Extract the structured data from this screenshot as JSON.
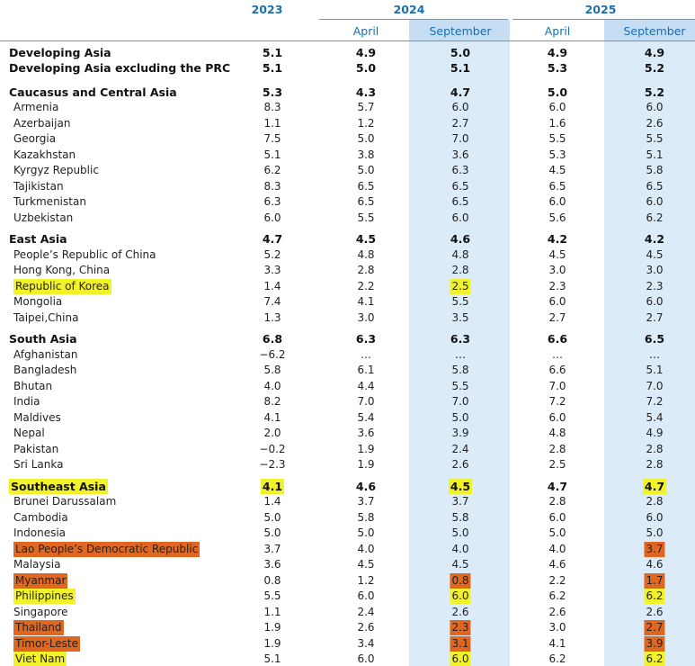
{
  "header": {
    "years": [
      "2023",
      "2024",
      "2025"
    ],
    "months": [
      "April",
      "September",
      "April",
      "September"
    ]
  },
  "table": {
    "groups": [
      {
        "rows": [
          {
            "bold": true,
            "cells": [
              "Developing Asia",
              "5.1",
              "4.9",
              "5.0",
              "4.9",
              "4.9"
            ]
          },
          {
            "bold": true,
            "cells": [
              "Developing Asia excluding the PRC",
              "5.1",
              "5.0",
              "5.1",
              "5.3",
              "5.2"
            ]
          }
        ]
      },
      {
        "rows": [
          {
            "bold": true,
            "cells": [
              "Caucasus and Central Asia",
              "5.3",
              "4.3",
              "4.7",
              "5.0",
              "5.2"
            ]
          },
          {
            "cells": [
              "Armenia",
              "8.3",
              "5.7",
              "6.0",
              "6.0",
              "6.0"
            ]
          },
          {
            "cells": [
              "Azerbaijan",
              "1.1",
              "1.2",
              "2.7",
              "1.6",
              "2.6"
            ]
          },
          {
            "cells": [
              "Georgia",
              "7.5",
              "5.0",
              "7.0",
              "5.5",
              "5.5"
            ]
          },
          {
            "cells": [
              "Kazakhstan",
              "5.1",
              "3.8",
              "3.6",
              "5.3",
              "5.1"
            ]
          },
          {
            "cells": [
              "Kyrgyz Republic",
              "6.2",
              "5.0",
              "6.3",
              "4.5",
              "5.8"
            ]
          },
          {
            "cells": [
              "Tajikistan",
              "8.3",
              "6.5",
              "6.5",
              "6.5",
              "6.5"
            ]
          },
          {
            "cells": [
              "Turkmenistan",
              "6.3",
              "6.5",
              "6.5",
              "6.0",
              "6.0"
            ]
          },
          {
            "cells": [
              "Uzbekistan",
              "6.0",
              "5.5",
              "6.0",
              "5.6",
              "6.2"
            ]
          }
        ]
      },
      {
        "rows": [
          {
            "bold": true,
            "cells": [
              "East Asia",
              "4.7",
              "4.5",
              "4.6",
              "4.2",
              "4.2"
            ]
          },
          {
            "cells": [
              "People’s Republic of China",
              "5.2",
              "4.8",
              "4.8",
              "4.5",
              "4.5"
            ]
          },
          {
            "cells": [
              "Hong Kong, China",
              "3.3",
              "2.8",
              "2.8",
              "3.0",
              "3.0"
            ]
          },
          {
            "yellow": [
              0,
              3
            ],
            "cells": [
              "Republic of Korea",
              "1.4",
              "2.2",
              "2.5",
              "2.3",
              "2.3"
            ]
          },
          {
            "cells": [
              "Mongolia",
              "7.4",
              "4.1",
              "5.5",
              "6.0",
              "6.0"
            ]
          },
          {
            "cells": [
              "Taipei,China",
              "1.3",
              "3.0",
              "3.5",
              "2.7",
              "2.7"
            ]
          }
        ]
      },
      {
        "rows": [
          {
            "bold": true,
            "cells": [
              "South Asia",
              "6.8",
              "6.3",
              "6.3",
              "6.6",
              "6.5"
            ]
          },
          {
            "cells": [
              "Afghanistan",
              "−6.2",
              "…",
              "…",
              "…",
              "…"
            ]
          },
          {
            "cells": [
              "Bangladesh",
              "5.8",
              "6.1",
              "5.8",
              "6.6",
              "5.1"
            ]
          },
          {
            "cells": [
              "Bhutan",
              "4.0",
              "4.4",
              "5.5",
              "7.0",
              "7.0"
            ]
          },
          {
            "cells": [
              "India",
              "8.2",
              "7.0",
              "7.0",
              "7.2",
              "7.2"
            ]
          },
          {
            "cells": [
              "Maldives",
              "4.1",
              "5.4",
              "5.0",
              "6.0",
              "5.4"
            ]
          },
          {
            "cells": [
              "Nepal",
              "2.0",
              "3.6",
              "3.9",
              "4.8",
              "4.9"
            ]
          },
          {
            "cells": [
              "Pakistan",
              "−0.2",
              "1.9",
              "2.4",
              "2.8",
              "2.8"
            ]
          },
          {
            "cells": [
              "Sri Lanka",
              "−2.3",
              "1.9",
              "2.6",
              "2.5",
              "2.8"
            ]
          }
        ]
      },
      {
        "rows": [
          {
            "bold": true,
            "yellow": [
              0,
              1,
              3,
              5
            ],
            "cells": [
              "Southeast Asia",
              "4.1",
              "4.6",
              "4.5",
              "4.7",
              "4.7"
            ]
          },
          {
            "cells": [
              "Brunei Darussalam",
              "1.4",
              "3.7",
              "3.7",
              "2.8",
              "2.8"
            ]
          },
          {
            "cells": [
              "Cambodia",
              "5.0",
              "5.8",
              "5.8",
              "6.0",
              "6.0"
            ]
          },
          {
            "cells": [
              "Indonesia",
              "5.0",
              "5.0",
              "5.0",
              "5.0",
              "5.0"
            ]
          },
          {
            "orange": [
              0,
              5
            ],
            "cells": [
              "Lao People’s Democratic Republic",
              "3.7",
              "4.0",
              "4.0",
              "4.0",
              "3.7"
            ]
          },
          {
            "cells": [
              "Malaysia",
              "3.6",
              "4.5",
              "4.5",
              "4.6",
              "4.6"
            ]
          },
          {
            "orange": [
              0,
              3,
              5
            ],
            "cells": [
              "Myanmar",
              "0.8",
              "1.2",
              "0.8",
              "2.2",
              "1.7"
            ]
          },
          {
            "yellow": [
              0,
              3,
              5
            ],
            "cells": [
              "Philippines",
              "5.5",
              "6.0",
              "6.0",
              "6.2",
              "6.2"
            ]
          },
          {
            "cells": [
              "Singapore",
              "1.1",
              "2.4",
              "2.6",
              "2.6",
              "2.6"
            ]
          },
          {
            "orange": [
              0,
              3,
              5
            ],
            "cells": [
              "Thailand",
              "1.9",
              "2.6",
              "2.3",
              "3.0",
              "2.7"
            ]
          },
          {
            "orange": [
              0,
              3,
              5
            ],
            "cells": [
              "Timor-Leste",
              "1.9",
              "3.4",
              "3.1",
              "4.1",
              "3.9"
            ]
          },
          {
            "yellow": [
              0,
              3,
              5
            ],
            "cells": [
              "Viet Nam",
              "5.1",
              "6.0",
              "6.0",
              "6.2",
              "6.2"
            ]
          }
        ]
      }
    ]
  }
}
